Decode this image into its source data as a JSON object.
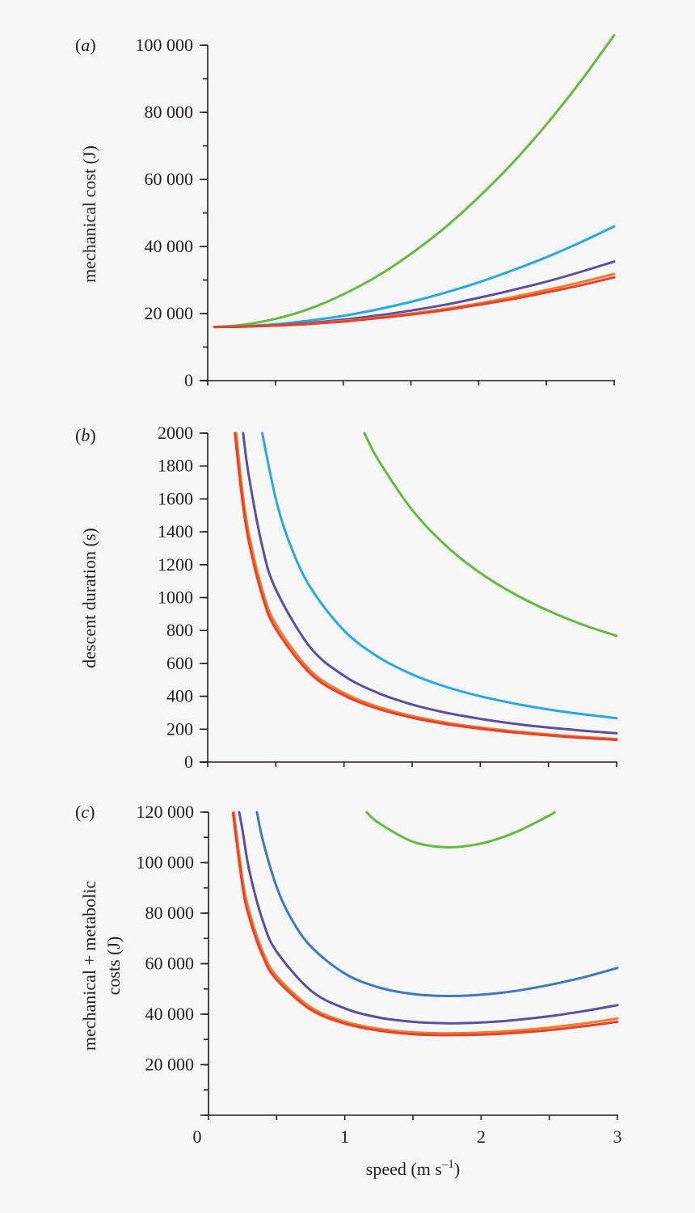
{
  "colors": {
    "green": "#6ab844",
    "cyan": "#2aa9e0",
    "blue": "#3f78c0",
    "purple": "#5b4fa0",
    "orange": "#f47b30",
    "red": "#e8412c"
  },
  "chart_data": [
    {
      "type": "line",
      "panel_label": "a",
      "ylabel": "mechanical cost (J)",
      "xlabel": "",
      "xlim": [
        0,
        3
      ],
      "ylim": [
        0,
        100000
      ],
      "yticks": [
        0,
        20000,
        40000,
        60000,
        80000,
        100000
      ],
      "ytick_labels": [
        "0",
        "20 000",
        "40 000",
        "60 000",
        "80 000",
        "100 000"
      ],
      "yminor_step": 10000,
      "xticks": [
        0,
        0.5,
        1,
        1.5,
        2,
        2.5,
        3
      ],
      "xtick_labels": [],
      "series": [
        {
          "color": "green",
          "x": [
            0.05,
            0.25,
            0.5,
            0.75,
            1,
            1.25,
            1.5,
            1.75,
            2,
            2.25,
            2.5,
            2.75,
            3
          ],
          "y": [
            16000,
            16600,
            18400,
            21400,
            25700,
            31100,
            37800,
            45600,
            54700,
            64900,
            76400,
            89100,
            103000
          ]
        },
        {
          "color": "cyan",
          "x": [
            0.05,
            0.25,
            0.5,
            0.75,
            1,
            1.25,
            1.5,
            1.75,
            2,
            2.25,
            2.5,
            2.75,
            3
          ],
          "y": [
            16000,
            16200,
            16800,
            17900,
            19300,
            21200,
            23500,
            26200,
            29300,
            32900,
            36800,
            41200,
            46000
          ]
        },
        {
          "color": "purple",
          "x": [
            0.05,
            0.25,
            0.5,
            0.75,
            1,
            1.25,
            1.5,
            1.75,
            2,
            2.25,
            2.5,
            2.75,
            3
          ],
          "y": [
            16000,
            16100,
            16500,
            17200,
            18200,
            19400,
            20900,
            22600,
            24700,
            27000,
            29500,
            32400,
            35500
          ]
        },
        {
          "color": "orange",
          "x": [
            0.05,
            0.25,
            0.5,
            0.75,
            1,
            1.25,
            1.5,
            1.75,
            2,
            2.25,
            2.5,
            2.75,
            3
          ],
          "y": [
            16000,
            16100,
            16400,
            17000,
            17800,
            18800,
            20000,
            21400,
            23000,
            24900,
            27000,
            29300,
            31800
          ]
        },
        {
          "color": "red",
          "x": [
            0.05,
            0.25,
            0.5,
            0.75,
            1,
            1.25,
            1.5,
            1.75,
            2,
            2.25,
            2.5,
            2.75,
            3
          ],
          "y": [
            16000,
            16100,
            16400,
            16900,
            17600,
            18600,
            19700,
            21000,
            22600,
            24300,
            26300,
            28400,
            30800
          ]
        }
      ]
    },
    {
      "type": "line",
      "panel_label": "b",
      "ylabel": "descent duration (s)",
      "xlabel": "",
      "xlim": [
        0,
        3
      ],
      "ylim": [
        0,
        2000
      ],
      "yticks": [
        0,
        200,
        400,
        600,
        800,
        1000,
        1200,
        1400,
        1600,
        1800,
        2000
      ],
      "ytick_labels": [
        "0",
        "200",
        "400",
        "600",
        "800",
        "1000",
        "1200",
        "1400",
        "1600",
        "1800",
        "2000"
      ],
      "yminor_step": 200,
      "xticks": [
        0,
        0.5,
        1,
        1.5,
        2,
        2.5,
        3
      ],
      "xtick_labels": [],
      "series": [
        {
          "color": "green",
          "x": [
            1.15,
            1.25,
            1.5,
            1.75,
            2,
            2.25,
            2.5,
            2.75,
            3
          ],
          "y": [
            2000,
            1840,
            1533,
            1314,
            1150,
            1022,
            920,
            836,
            767
          ]
        },
        {
          "color": "cyan",
          "x": [
            0.4,
            0.5,
            0.6,
            0.75,
            1,
            1.25,
            1.5,
            1.75,
            2,
            2.25,
            2.5,
            2.75,
            3
          ],
          "y": [
            2000,
            1600,
            1333,
            1067,
            800,
            640,
            533,
            457,
            400,
            356,
            320,
            291,
            267
          ]
        },
        {
          "color": "purple",
          "x": [
            0.26,
            0.3,
            0.4,
            0.5,
            0.75,
            1,
            1.25,
            1.5,
            1.75,
            2,
            2.25,
            2.5,
            2.75,
            3
          ],
          "y": [
            2000,
            1750,
            1313,
            1050,
            700,
            525,
            420,
            350,
            300,
            263,
            233,
            210,
            191,
            175
          ]
        },
        {
          "color": "orange",
          "x": [
            0.21,
            0.25,
            0.3,
            0.4,
            0.5,
            0.75,
            1,
            1.25,
            1.5,
            1.75,
            2,
            2.25,
            2.5,
            2.75,
            3
          ],
          "y": [
            2000,
            1680,
            1400,
            1050,
            840,
            560,
            420,
            336,
            280,
            240,
            210,
            187,
            168,
            153,
            140
          ]
        },
        {
          "color": "red",
          "x": [
            0.2,
            0.25,
            0.3,
            0.4,
            0.5,
            0.75,
            1,
            1.25,
            1.5,
            1.75,
            2,
            2.25,
            2.5,
            2.75,
            3
          ],
          "y": [
            2000,
            1620,
            1350,
            1013,
            810,
            540,
            405,
            324,
            270,
            231,
            203,
            180,
            162,
            147,
            135
          ]
        }
      ]
    },
    {
      "type": "line",
      "panel_label": "c",
      "ylabel": [
        "mechanical + metabolic",
        "costs (J)"
      ],
      "xlabel": "speed (m s",
      "xlabel_sup": "–1",
      "xlabel_end": ")",
      "xlim": [
        0,
        3
      ],
      "ylim": [
        0,
        120000
      ],
      "yticks": [
        20000,
        40000,
        60000,
        80000,
        100000,
        120000
      ],
      "ytick_labels": [
        "20 000",
        "40 000",
        "60 000",
        "80 000",
        "100 000",
        "120 000"
      ],
      "yminor_step": 10000,
      "xticks": [
        0,
        0.5,
        1,
        1.5,
        2,
        2.5,
        3
      ],
      "xtick_labels": [
        "0",
        "",
        "1",
        "",
        "2",
        "",
        "3"
      ],
      "series": [
        {
          "color": "green",
          "x": [
            1.16,
            1.25,
            1.5,
            1.75,
            2,
            2.25,
            2.5,
            2.54
          ],
          "y": [
            120000,
            115700,
            108300,
            106100,
            107600,
            112000,
            118700,
            120000
          ]
        },
        {
          "color": "blue",
          "x": [
            0.356,
            0.4,
            0.5,
            0.6,
            0.75,
            1,
            1.25,
            1.5,
            1.75,
            2,
            2.25,
            2.5,
            2.75,
            3
          ],
          "y": [
            120000,
            108500,
            90400,
            78500,
            66900,
            56100,
            50600,
            48000,
            47200,
            47700,
            49200,
            51600,
            54600,
            58300
          ]
        },
        {
          "color": "purple",
          "x": [
            0.225,
            0.25,
            0.3,
            0.4,
            0.5,
            0.75,
            1,
            1.25,
            1.5,
            1.75,
            2,
            2.25,
            2.5,
            2.75,
            3
          ],
          "y": [
            120000,
            112700,
            96700,
            76700,
            64800,
            49400,
            42300,
            38700,
            37000,
            36400,
            36700,
            37700,
            39200,
            41200,
            43600
          ]
        },
        {
          "color": "orange",
          "x": [
            0.186,
            0.25,
            0.3,
            0.4,
            0.5,
            0.75,
            1,
            1.25,
            1.5,
            1.75,
            2,
            2.25,
            2.5,
            2.75,
            3
          ],
          "y": [
            120000,
            93400,
            80600,
            64600,
            55100,
            42800,
            37100,
            34200,
            32800,
            32400,
            32700,
            33500,
            34700,
            36300,
            38300
          ]
        },
        {
          "color": "red",
          "x": [
            0.18,
            0.25,
            0.3,
            0.4,
            0.5,
            0.75,
            1,
            1.25,
            1.5,
            1.75,
            2,
            2.25,
            2.5,
            2.75,
            3
          ],
          "y": [
            119600,
            90600,
            78200,
            62800,
            53700,
            41800,
            36300,
            33500,
            32100,
            31700,
            31900,
            32600,
            33700,
            35200,
            37000
          ]
        }
      ]
    }
  ]
}
